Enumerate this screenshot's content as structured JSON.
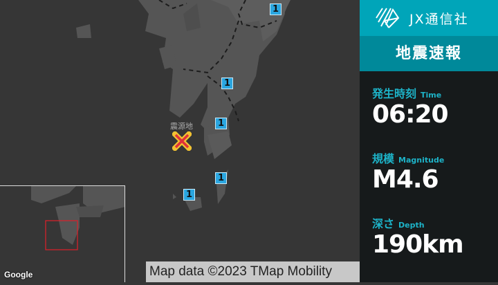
{
  "map": {
    "epicenter_label": "震源地",
    "intensity_markers": [
      {
        "value": "1"
      },
      {
        "value": "1"
      },
      {
        "value": "1"
      },
      {
        "value": "1"
      },
      {
        "value": "1"
      }
    ],
    "google_logo": "Google",
    "attribution": "Map data ©2023 TMap Mobility"
  },
  "panel": {
    "brand": "JX通信社",
    "title": "地震速報",
    "time": {
      "label": "発生時刻",
      "sub": "Time",
      "value": "06:20"
    },
    "magnitude": {
      "label": "規模",
      "sub": "Magnitude",
      "value": "M4.6"
    },
    "depth": {
      "label": "深さ",
      "sub": "Depth",
      "value": "190km"
    }
  },
  "colors": {
    "accent": "#00a5b9",
    "accent_dark": "#00899a",
    "marker": "#2aa6e0",
    "epicenter": "#e0303a"
  }
}
